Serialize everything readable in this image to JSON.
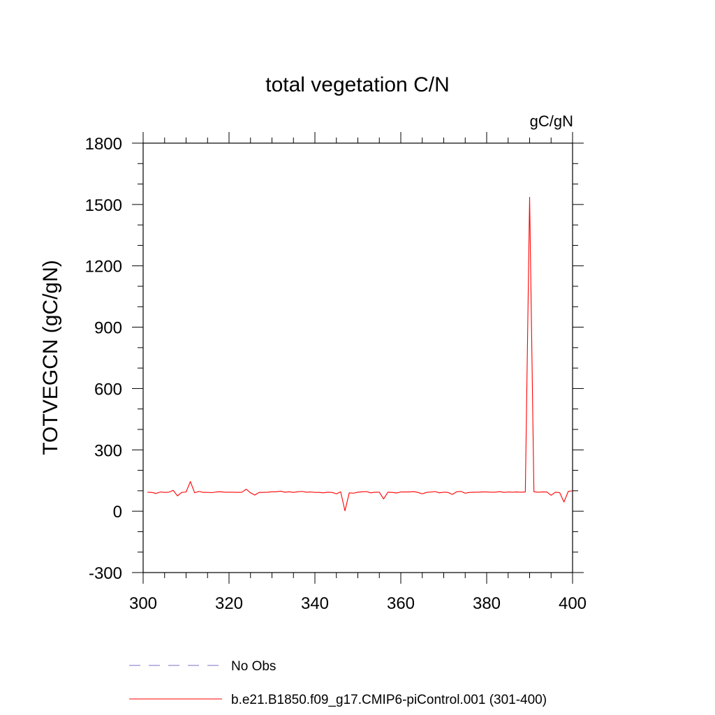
{
  "chart_data": {
    "type": "line",
    "title": "total vegetation C/N",
    "units_label": "gC/gN",
    "ylabel": "TOTVEGCN  (gC/gN)",
    "xlabel": "",
    "xlim": [
      300,
      400
    ],
    "ylim": [
      -300,
      1800
    ],
    "x_ticks": [
      300,
      320,
      340,
      360,
      380,
      400
    ],
    "y_ticks": [
      -300,
      0,
      300,
      600,
      900,
      1200,
      1500,
      1800
    ],
    "x_tick_labels": [
      "300",
      "320",
      "340",
      "360",
      "380",
      "400"
    ],
    "y_tick_labels": [
      "-300",
      "0",
      "300",
      "600",
      "900",
      "1200",
      "1500",
      "1800"
    ],
    "grid": false,
    "legend_position": "bottom",
    "legend": [
      {
        "label": "No Obs",
        "color": "#7b6fc9",
        "style": "dashed"
      },
      {
        "label": "b.e21.B1850.f09_g17.CMIP6-piControl.001 (301-400)",
        "color": "#ff0000",
        "style": "solid"
      }
    ],
    "series": [
      {
        "name": "b.e21.B1850.f09_g17.CMIP6-piControl.001 (301-400)",
        "color": "#ff0000",
        "x": [
          301,
          302,
          303,
          304,
          305,
          306,
          307,
          308,
          309,
          310,
          311,
          312,
          313,
          314,
          315,
          316,
          317,
          318,
          319,
          320,
          321,
          322,
          323,
          324,
          325,
          326,
          327,
          328,
          329,
          330,
          331,
          332,
          333,
          334,
          335,
          336,
          337,
          338,
          339,
          340,
          341,
          342,
          343,
          344,
          345,
          346,
          347,
          348,
          349,
          350,
          351,
          352,
          353,
          354,
          355,
          356,
          357,
          358,
          359,
          360,
          361,
          362,
          363,
          364,
          365,
          366,
          367,
          368,
          369,
          370,
          371,
          372,
          373,
          374,
          375,
          376,
          377,
          378,
          379,
          380,
          381,
          382,
          383,
          384,
          385,
          386,
          387,
          388,
          389,
          390,
          391,
          392,
          393,
          394,
          395,
          396,
          397,
          398,
          399,
          400
        ],
        "values": [
          93,
          92,
          87,
          94,
          92,
          93,
          102,
          75,
          92,
          94,
          145,
          90,
          97,
          92,
          92,
          91,
          94,
          95,
          93,
          93,
          93,
          92,
          93,
          108,
          90,
          79,
          92,
          92,
          93,
          95,
          95,
          98,
          93,
          95,
          92,
          95,
          97,
          93,
          94,
          92,
          92,
          90,
          93,
          92,
          85,
          95,
          2,
          90,
          88,
          93,
          95,
          96,
          90,
          93,
          93,
          60,
          93,
          92,
          89,
          94,
          94,
          94,
          96,
          92,
          85,
          92,
          94,
          96,
          90,
          93,
          92,
          82,
          95,
          97,
          88,
          92,
          93,
          93,
          94,
          94,
          93,
          93,
          96,
          92,
          94,
          93,
          94,
          93,
          94,
          1535,
          95,
          93,
          94,
          94,
          78,
          93,
          91,
          45,
          97,
          100
        ]
      }
    ]
  }
}
